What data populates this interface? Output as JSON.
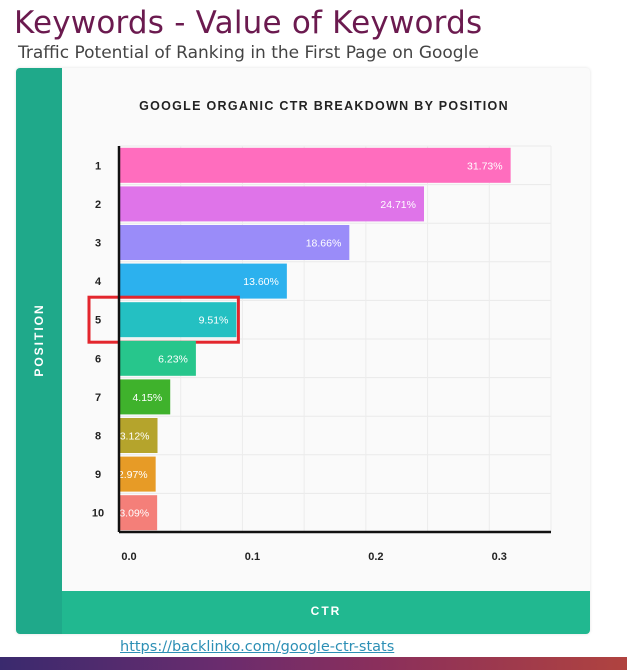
{
  "slide": {
    "title": "Keywords - Value of Keywords",
    "subtitle": "Traffic Potential of Ranking in the First Page on Google",
    "source_link": "https://backlinko.com/google-ctr-stats"
  },
  "colors": {
    "title": "#6b1a4f",
    "strip": "#1fa98a",
    "strip_bottom": "#21b890",
    "highlight_box": "#e3262d",
    "footer_band": [
      "#3a2a6e",
      "#8a2f5c",
      "#b0433f"
    ]
  },
  "chart_data": {
    "type": "bar",
    "orientation": "horizontal",
    "title": "GOOGLE ORGANIC CTR BREAKDOWN BY POSITION",
    "xlabel": "CTR",
    "ylabel": "POSITION",
    "xlim": [
      0,
      0.35
    ],
    "xticks": [
      "0.0",
      "0.1",
      "0.2",
      "0.3"
    ],
    "xtick_values": [
      0,
      0.1,
      0.2,
      0.3
    ],
    "grid": true,
    "categories": [
      "1",
      "2",
      "3",
      "4",
      "5",
      "6",
      "7",
      "8",
      "9",
      "10"
    ],
    "values": [
      0.3173,
      0.2471,
      0.1866,
      0.136,
      0.0951,
      0.0623,
      0.0415,
      0.0312,
      0.0297,
      0.0309
    ],
    "value_labels": [
      "31.73%",
      "24.71%",
      "18.66%",
      "13.60%",
      "9.51%",
      "6.23%",
      "4.15%",
      "3.12%",
      "2.97%",
      "3.09%"
    ],
    "bar_colors": [
      "#ff6dbe",
      "#df74e9",
      "#9a8cf9",
      "#2cb1ee",
      "#24c0c2",
      "#27c68c",
      "#3fb22c",
      "#b5a42c",
      "#e79b26",
      "#f47f79"
    ],
    "highlighted_category": "5",
    "legend": null
  }
}
